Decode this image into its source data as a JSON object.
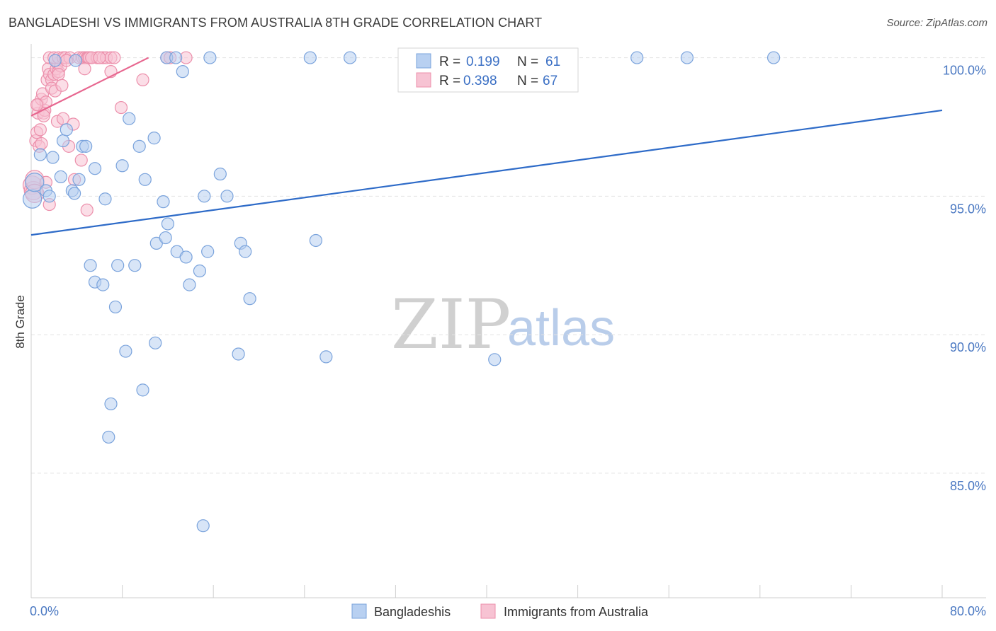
{
  "header": {
    "title": "BANGLADESHI VS IMMIGRANTS FROM AUSTRALIA 8TH GRADE CORRELATION CHART",
    "source": "Source: ZipAtlas.com"
  },
  "watermark": {
    "zip": "ZIP",
    "atlas": "atlas"
  },
  "colors": {
    "blue_fill": "#b8d0f1",
    "blue_stroke": "#7aa3dc",
    "blue_line": "#2e6bc8",
    "pink_fill": "#f7c3d3",
    "pink_stroke": "#ec8fab",
    "pink_line": "#e7668f",
    "grid": "#e3e3e3",
    "tick_text": "#4a78c2"
  },
  "chart_data": {
    "type": "scatter",
    "title": "BANGLADESHI VS IMMIGRANTS FROM AUSTRALIA 8TH GRADE CORRELATION CHART",
    "xlabel": "",
    "ylabel": "8th Grade",
    "xlim": [
      0,
      80
    ],
    "ylim": [
      80.5,
      100.5
    ],
    "x_tick_labels": [
      "0.0%",
      "80.0%"
    ],
    "y_ticks": [
      85,
      90,
      95,
      100
    ],
    "y_tick_labels": [
      "85.0%",
      "90.0%",
      "95.0%",
      "100.0%"
    ],
    "legend": {
      "position": "top-center"
    },
    "series": [
      {
        "name": "Bangladeshis",
        "R": "0.199",
        "N": "61",
        "trend": {
          "x": [
            0,
            80
          ],
          "y": [
            93.6,
            98.1
          ]
        },
        "points": [
          [
            0.1,
            94.9
          ],
          [
            0.3,
            95.5
          ],
          [
            0.8,
            96.5
          ],
          [
            1.3,
            95.2
          ],
          [
            1.6,
            95.0
          ],
          [
            1.9,
            96.4
          ],
          [
            2.6,
            95.7
          ],
          [
            2.8,
            97.0
          ],
          [
            3.1,
            97.4
          ],
          [
            3.6,
            95.2
          ],
          [
            3.8,
            95.1
          ],
          [
            4.2,
            95.6
          ],
          [
            4.5,
            96.8
          ],
          [
            4.8,
            96.8
          ],
          [
            5.6,
            96.0
          ],
          [
            6.5,
            94.9
          ],
          [
            8.0,
            96.1
          ],
          [
            8.6,
            97.8
          ],
          [
            9.5,
            96.8
          ],
          [
            10.0,
            95.6
          ],
          [
            10.8,
            97.1
          ],
          [
            11.6,
            94.8
          ],
          [
            12.0,
            94.0
          ],
          [
            2.1,
            99.9
          ],
          [
            3.9,
            99.9
          ],
          [
            11.9,
            100.0
          ],
          [
            12.7,
            100.0
          ],
          [
            13.3,
            99.5
          ],
          [
            15.7,
            100.0
          ],
          [
            24.5,
            100.0
          ],
          [
            28.0,
            100.0
          ],
          [
            53.2,
            100.0
          ],
          [
            57.6,
            100.0
          ],
          [
            65.2,
            100.0
          ],
          [
            15.2,
            95.0
          ],
          [
            16.6,
            95.8
          ],
          [
            17.2,
            95.0
          ],
          [
            11.0,
            93.3
          ],
          [
            11.8,
            93.5
          ],
          [
            12.8,
            93.0
          ],
          [
            13.6,
            92.8
          ],
          [
            14.8,
            92.3
          ],
          [
            15.5,
            93.0
          ],
          [
            18.4,
            93.3
          ],
          [
            18.8,
            93.0
          ],
          [
            25.0,
            93.4
          ],
          [
            5.2,
            92.5
          ],
          [
            5.6,
            91.9
          ],
          [
            6.3,
            91.8
          ],
          [
            7.6,
            92.5
          ],
          [
            9.1,
            92.5
          ],
          [
            13.9,
            91.8
          ],
          [
            7.4,
            91.0
          ],
          [
            19.2,
            91.3
          ],
          [
            8.3,
            89.4
          ],
          [
            10.9,
            89.7
          ],
          [
            18.2,
            89.3
          ],
          [
            25.9,
            89.2
          ],
          [
            40.7,
            89.1
          ],
          [
            9.8,
            88.0
          ],
          [
            7.0,
            87.5
          ],
          [
            6.8,
            86.3
          ],
          [
            15.1,
            83.1
          ]
        ]
      },
      {
        "name": "Immigrants from Australia",
        "R": "0.398",
        "N": "67",
        "trend": {
          "x": [
            0,
            10.3
          ],
          "y": [
            97.9,
            100.0
          ]
        },
        "points": [
          [
            0.1,
            95.4
          ],
          [
            0.2,
            95.2
          ],
          [
            0.3,
            95.6
          ],
          [
            0.4,
            97.0
          ],
          [
            0.5,
            97.3
          ],
          [
            0.6,
            98.0
          ],
          [
            0.6,
            98.3
          ],
          [
            0.7,
            96.8
          ],
          [
            0.8,
            97.4
          ],
          [
            0.9,
            98.5
          ],
          [
            1.0,
            98.7
          ],
          [
            1.1,
            98.0
          ],
          [
            1.2,
            98.1
          ],
          [
            1.3,
            98.4
          ],
          [
            1.4,
            99.2
          ],
          [
            1.5,
            99.6
          ],
          [
            1.6,
            99.4
          ],
          [
            1.8,
            99.2
          ],
          [
            1.8,
            98.9
          ],
          [
            2.0,
            99.4
          ],
          [
            2.1,
            98.8
          ],
          [
            2.2,
            99.6
          ],
          [
            2.3,
            99.8
          ],
          [
            2.4,
            99.5
          ],
          [
            2.6,
            99.7
          ],
          [
            1.6,
            100.0
          ],
          [
            2.0,
            100.0
          ],
          [
            2.4,
            100.0
          ],
          [
            2.8,
            100.0
          ],
          [
            3.0,
            100.0
          ],
          [
            3.4,
            100.0
          ],
          [
            4.2,
            100.0
          ],
          [
            4.5,
            100.0
          ],
          [
            4.7,
            100.0
          ],
          [
            4.9,
            100.0
          ],
          [
            5.0,
            100.0
          ],
          [
            5.1,
            100.0
          ],
          [
            5.8,
            100.0
          ],
          [
            6.3,
            100.0
          ],
          [
            6.6,
            100.0
          ],
          [
            7.0,
            100.0
          ],
          [
            7.3,
            100.0
          ],
          [
            11.9,
            100.0
          ],
          [
            12.2,
            100.0
          ],
          [
            13.6,
            100.0
          ],
          [
            4.7,
            99.6
          ],
          [
            7.0,
            99.5
          ],
          [
            9.8,
            99.2
          ],
          [
            7.9,
            98.2
          ],
          [
            1.3,
            95.5
          ],
          [
            1.6,
            94.7
          ],
          [
            2.3,
            97.7
          ],
          [
            2.8,
            97.8
          ],
          [
            3.3,
            96.8
          ],
          [
            3.7,
            97.6
          ],
          [
            4.4,
            96.3
          ],
          [
            3.8,
            95.6
          ],
          [
            4.9,
            94.5
          ],
          [
            0.3,
            95.1
          ],
          [
            0.9,
            96.9
          ],
          [
            2.4,
            99.4
          ],
          [
            3.1,
            99.9
          ],
          [
            5.3,
            100.0
          ],
          [
            6.0,
            100.0
          ],
          [
            1.1,
            97.9
          ],
          [
            0.5,
            98.3
          ],
          [
            2.7,
            99.0
          ]
        ]
      }
    ]
  }
}
